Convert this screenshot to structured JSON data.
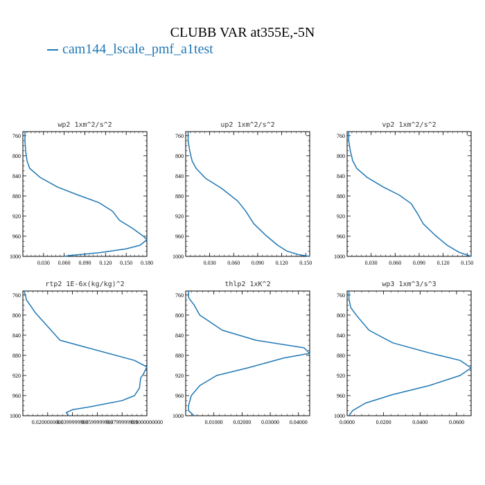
{
  "figure": {
    "title": "CLUBB VAR at355E,-5N",
    "legend_label": "cam144_lscale_pmf_a1test",
    "line_color": "#1f77b4"
  },
  "chart_data": [
    {
      "type": "line",
      "title": "wp2  1xm^2/s^2",
      "ylim": [
        1000,
        752
      ],
      "y_ticks": [
        "760",
        "800",
        "840",
        "880",
        "920",
        "960",
        "1000"
      ],
      "xlim": [
        0.0,
        0.18
      ],
      "x_ticks": [
        {
          "v": 0.03,
          "label": "0.030"
        },
        {
          "v": 0.06,
          "label": "0.060"
        },
        {
          "v": 0.09,
          "label": "0.090"
        },
        {
          "v": 0.12,
          "label": "0.120"
        },
        {
          "v": 0.15,
          "label": "0.150"
        },
        {
          "v": 0.18,
          "label": "0.180"
        }
      ],
      "points": [
        [
          0.003,
          752
        ],
        [
          0.003,
          770
        ],
        [
          0.004,
          790
        ],
        [
          0.006,
          810
        ],
        [
          0.01,
          825
        ],
        [
          0.025,
          843
        ],
        [
          0.05,
          862
        ],
        [
          0.08,
          878
        ],
        [
          0.11,
          893
        ],
        [
          0.13,
          910
        ],
        [
          0.14,
          928
        ],
        [
          0.16,
          945
        ],
        [
          0.175,
          960
        ],
        [
          0.18,
          967
        ],
        [
          0.17,
          978
        ],
        [
          0.15,
          985
        ],
        [
          0.11,
          993
        ],
        [
          0.07,
          998
        ],
        [
          0.06,
          1000
        ]
      ]
    },
    {
      "type": "line",
      "title": "up2  1xm^2/s^2",
      "ylim": [
        1000,
        752
      ],
      "y_ticks": [
        "760",
        "800",
        "840",
        "880",
        "920",
        "960",
        "1000"
      ],
      "xlim": [
        0.0,
        0.155
      ],
      "x_ticks": [
        {
          "v": 0.03,
          "label": "0.030"
        },
        {
          "v": 0.06,
          "label": "0.060"
        },
        {
          "v": 0.09,
          "label": "0.090"
        },
        {
          "v": 0.12,
          "label": "0.120"
        },
        {
          "v": 0.15,
          "label": "0.150"
        }
      ],
      "points": [
        [
          0.003,
          752
        ],
        [
          0.003,
          770
        ],
        [
          0.005,
          790
        ],
        [
          0.008,
          810
        ],
        [
          0.013,
          825
        ],
        [
          0.025,
          845
        ],
        [
          0.045,
          865
        ],
        [
          0.065,
          890
        ],
        [
          0.075,
          910
        ],
        [
          0.085,
          935
        ],
        [
          0.1,
          958
        ],
        [
          0.115,
          978
        ],
        [
          0.127,
          990
        ],
        [
          0.142,
          997
        ],
        [
          0.155,
          1000
        ]
      ]
    },
    {
      "type": "line",
      "title": "vp2  1xm^2/s^2",
      "ylim": [
        1000,
        752
      ],
      "y_ticks": [
        "760",
        "800",
        "840",
        "880",
        "920",
        "960",
        "1000"
      ],
      "xlim": [
        0.0,
        0.155
      ],
      "x_ticks": [
        {
          "v": 0.03,
          "label": "0.030"
        },
        {
          "v": 0.06,
          "label": "0.060"
        },
        {
          "v": 0.09,
          "label": "0.090"
        },
        {
          "v": 0.12,
          "label": "0.120"
        },
        {
          "v": 0.15,
          "label": "0.150"
        }
      ],
      "points": [
        [
          0.002,
          752
        ],
        [
          0.002,
          770
        ],
        [
          0.004,
          790
        ],
        [
          0.007,
          810
        ],
        [
          0.012,
          825
        ],
        [
          0.025,
          843
        ],
        [
          0.045,
          862
        ],
        [
          0.065,
          878
        ],
        [
          0.08,
          895
        ],
        [
          0.088,
          915
        ],
        [
          0.095,
          935
        ],
        [
          0.11,
          958
        ],
        [
          0.125,
          978
        ],
        [
          0.14,
          992
        ],
        [
          0.155,
          1000
        ]
      ]
    },
    {
      "type": "line",
      "title": "rtp2  1E-6x(kg/kg)^2",
      "ylim": [
        1000,
        752
      ],
      "y_ticks": [
        "760",
        "800",
        "840",
        "880",
        "920",
        "960",
        "1000"
      ],
      "xlim": [
        0.0,
        0.1
      ],
      "x_ticks": [
        {
          "v": 0.02,
          "label": "0.0200000000"
        },
        {
          "v": 0.04,
          "label": "0.0399999999"
        },
        {
          "v": 0.06,
          "label": "0.0599999999"
        },
        {
          "v": 0.08,
          "label": "0.0799999999"
        },
        {
          "v": 0.1,
          "label": "0.1000000000"
        }
      ],
      "points": [
        [
          0.001,
          752
        ],
        [
          0.003,
          770
        ],
        [
          0.01,
          795
        ],
        [
          0.03,
          850
        ],
        [
          0.09,
          890
        ],
        [
          0.1,
          903
        ],
        [
          0.097,
          918
        ],
        [
          0.095,
          925
        ],
        [
          0.094,
          945
        ],
        [
          0.09,
          960
        ],
        [
          0.08,
          970
        ],
        [
          0.055,
          982
        ],
        [
          0.04,
          988
        ],
        [
          0.035,
          994
        ],
        [
          0.037,
          1000
        ]
      ]
    },
    {
      "type": "line",
      "title": "thlp2  1xK^2",
      "ylim": [
        1000,
        752
      ],
      "y_ticks": [
        "760",
        "800",
        "840",
        "880",
        "920",
        "960",
        "1000"
      ],
      "xlim": [
        0.0,
        0.044
      ],
      "x_ticks": [
        {
          "v": 0.01,
          "label": "0.01000"
        },
        {
          "v": 0.02,
          "label": "0.02000"
        },
        {
          "v": 0.03,
          "label": "0.03000"
        },
        {
          "v": 0.04,
          "label": "0.04000"
        }
      ],
      "points": [
        [
          0.001,
          752
        ],
        [
          0.001,
          765
        ],
        [
          0.003,
          780
        ],
        [
          0.005,
          800
        ],
        [
          0.013,
          830
        ],
        [
          0.025,
          850
        ],
        [
          0.042,
          865
        ],
        [
          0.044,
          876
        ],
        [
          0.035,
          885
        ],
        [
          0.022,
          905
        ],
        [
          0.011,
          920
        ],
        [
          0.005,
          940
        ],
        [
          0.002,
          960
        ],
        [
          0.001,
          980
        ],
        [
          0.001,
          990
        ],
        [
          0.003,
          1000
        ]
      ]
    },
    {
      "type": "line",
      "title": "wp3  1xm^3/s^3",
      "ylim": [
        1000,
        752
      ],
      "y_ticks": [
        "760",
        "800",
        "840",
        "880",
        "920",
        "960",
        "1000"
      ],
      "xlim": [
        0.0,
        0.068
      ],
      "x_ticks": [
        {
          "v": 0.0,
          "label": "0.0000"
        },
        {
          "v": 0.02,
          "label": "0.0200"
        },
        {
          "v": 0.04,
          "label": "0.0400"
        },
        {
          "v": 0.06,
          "label": "0.0600"
        }
      ],
      "points": [
        [
          0.001,
          752
        ],
        [
          0.001,
          768
        ],
        [
          0.002,
          785
        ],
        [
          0.005,
          800
        ],
        [
          0.012,
          830
        ],
        [
          0.025,
          855
        ],
        [
          0.045,
          875
        ],
        [
          0.062,
          890
        ],
        [
          0.068,
          905
        ],
        [
          0.062,
          920
        ],
        [
          0.045,
          940
        ],
        [
          0.025,
          958
        ],
        [
          0.01,
          975
        ],
        [
          0.003,
          990
        ],
        [
          0.001,
          1000
        ]
      ]
    }
  ]
}
